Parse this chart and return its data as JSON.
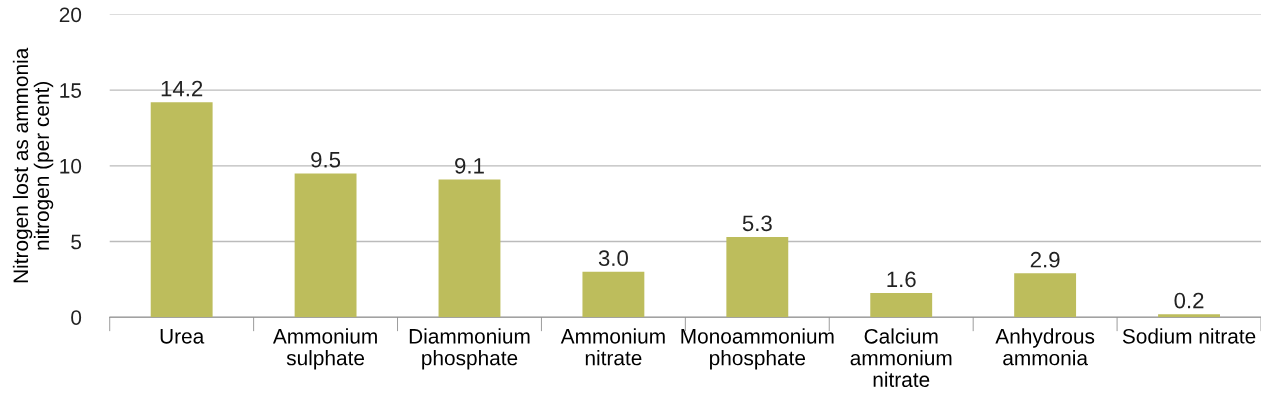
{
  "chart_data": {
    "type": "bar",
    "ylabel": "Nitrogen lost as ammonia\nnitrogen (per cent)",
    "categories": [
      "Urea",
      "Ammonium\nsulphate",
      "Diammonium\nphosphate",
      "Ammonium\nnitrate",
      "Monoammonium\nphosphate",
      "Calcium\nammonium\nnitrate",
      "Anhydrous\nammonia",
      "Sodium nitrate"
    ],
    "values": [
      14.2,
      9.5,
      9.1,
      3.0,
      5.3,
      1.6,
      2.9,
      0.2
    ],
    "color": "#bdbd5c",
    "ylim": [
      0,
      20
    ],
    "yticks": [
      0,
      5,
      10,
      15,
      20
    ],
    "value_labels": [
      "14.2",
      "9.5",
      "9.1",
      "3.0",
      "5.3",
      "1.6",
      "2.9",
      "0.2"
    ],
    "grid": "y"
  }
}
